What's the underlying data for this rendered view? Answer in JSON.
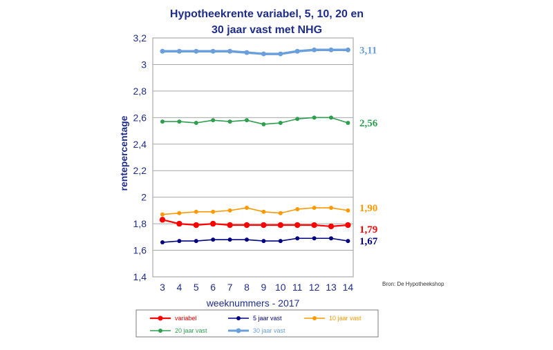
{
  "chart_data": {
    "type": "line",
    "title_line1": "Hypotheekrente variabel, 5, 10, 20 en",
    "title_line2": "30 jaar vast met NHG",
    "xlabel": "weeknummers - 2017",
    "ylabel": "rentepercentage",
    "x": [
      3,
      4,
      5,
      6,
      7,
      8,
      9,
      10,
      11,
      12,
      13,
      14
    ],
    "x_tick_labels": [
      "3",
      "4",
      "5",
      "6",
      "7",
      "8",
      "9",
      "10",
      "11",
      "12",
      "13",
      "14"
    ],
    "ylim": [
      1.4,
      3.2
    ],
    "y_tick_labels": [
      "1,4",
      "1,6",
      "1,8",
      "2",
      "2,2",
      "2,4",
      "2,6",
      "2,8",
      "3",
      "3,2"
    ],
    "y_ticks": [
      1.4,
      1.6,
      1.8,
      2.0,
      2.2,
      2.4,
      2.6,
      2.8,
      3.0,
      3.2
    ],
    "grid": true,
    "source": "Bron: De Hypotheekshop",
    "series": [
      {
        "name": "variabel",
        "color": "#ff0000",
        "values": [
          1.83,
          1.8,
          1.79,
          1.8,
          1.79,
          1.79,
          1.79,
          1.79,
          1.79,
          1.79,
          1.78,
          1.79
        ],
        "end_label": "1,79"
      },
      {
        "name": "5 jaar vast",
        "color": "#000080",
        "values": [
          1.66,
          1.67,
          1.67,
          1.68,
          1.68,
          1.68,
          1.67,
          1.67,
          1.69,
          1.69,
          1.69,
          1.67
        ],
        "end_label": "1,67"
      },
      {
        "name": "10 jaar vast",
        "color": "#ff9900",
        "values": [
          1.87,
          1.88,
          1.89,
          1.89,
          1.9,
          1.92,
          1.89,
          1.88,
          1.91,
          1.92,
          1.92,
          1.9
        ],
        "end_label": "1,90"
      },
      {
        "name": "20 jaar vast",
        "color": "#2e9e4f",
        "values": [
          2.57,
          2.57,
          2.56,
          2.58,
          2.57,
          2.58,
          2.55,
          2.56,
          2.59,
          2.6,
          2.6,
          2.56
        ],
        "end_label": "2,56"
      },
      {
        "name": "30 jaar vast",
        "color": "#6a9fdc",
        "values": [
          3.1,
          3.1,
          3.1,
          3.1,
          3.1,
          3.09,
          3.08,
          3.08,
          3.1,
          3.11,
          3.11,
          3.11
        ],
        "end_label": "3,11"
      }
    ]
  }
}
